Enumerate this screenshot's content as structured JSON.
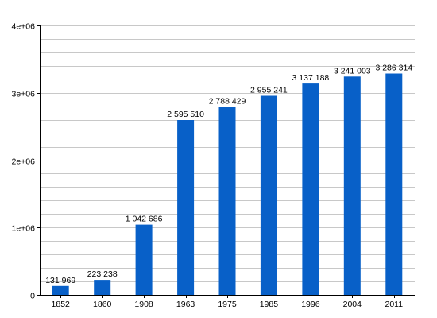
{
  "chart_data": {
    "type": "bar",
    "categories": [
      "1852",
      "1860",
      "1908",
      "1963",
      "1975",
      "1985",
      "1996",
      "2004",
      "2011"
    ],
    "values": [
      131969,
      223238,
      1042686,
      2595510,
      2788429,
      2955241,
      3137188,
      3241003,
      3286314
    ],
    "value_labels": [
      "131 969",
      "223 238",
      "1 042 686",
      "2 595 510",
      "2 788 429",
      "2 955 241",
      "3 137 188",
      "3 241 003",
      "3 286 314"
    ],
    "ylim": [
      0,
      4000000
    ],
    "yticks": [
      0,
      1000000,
      2000000,
      3000000,
      4000000
    ],
    "ytick_labels": [
      "0",
      "1e+06",
      "2e+06",
      "3e+06",
      "4e+06"
    ],
    "grid": true,
    "bar_color": "#0860c8",
    "grid_color": "#c8c8c8",
    "title": "",
    "xlabel": "",
    "ylabel": ""
  }
}
